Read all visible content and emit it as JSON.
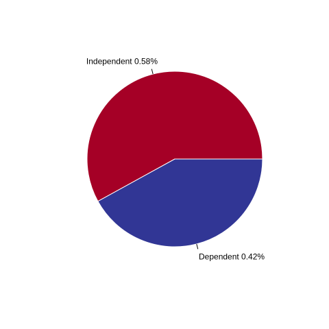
{
  "chart_data": {
    "type": "pie",
    "title": "",
    "categories": [
      "Independent",
      "Dependent"
    ],
    "values": [
      0.58,
      0.42
    ],
    "labels": [
      "Independent 0.58%",
      "Dependent 0.42%"
    ],
    "colors": [
      "#A50026",
      "#313695"
    ],
    "start_angle_deg": 0,
    "direction": "counterclockwise",
    "legend": "none"
  }
}
